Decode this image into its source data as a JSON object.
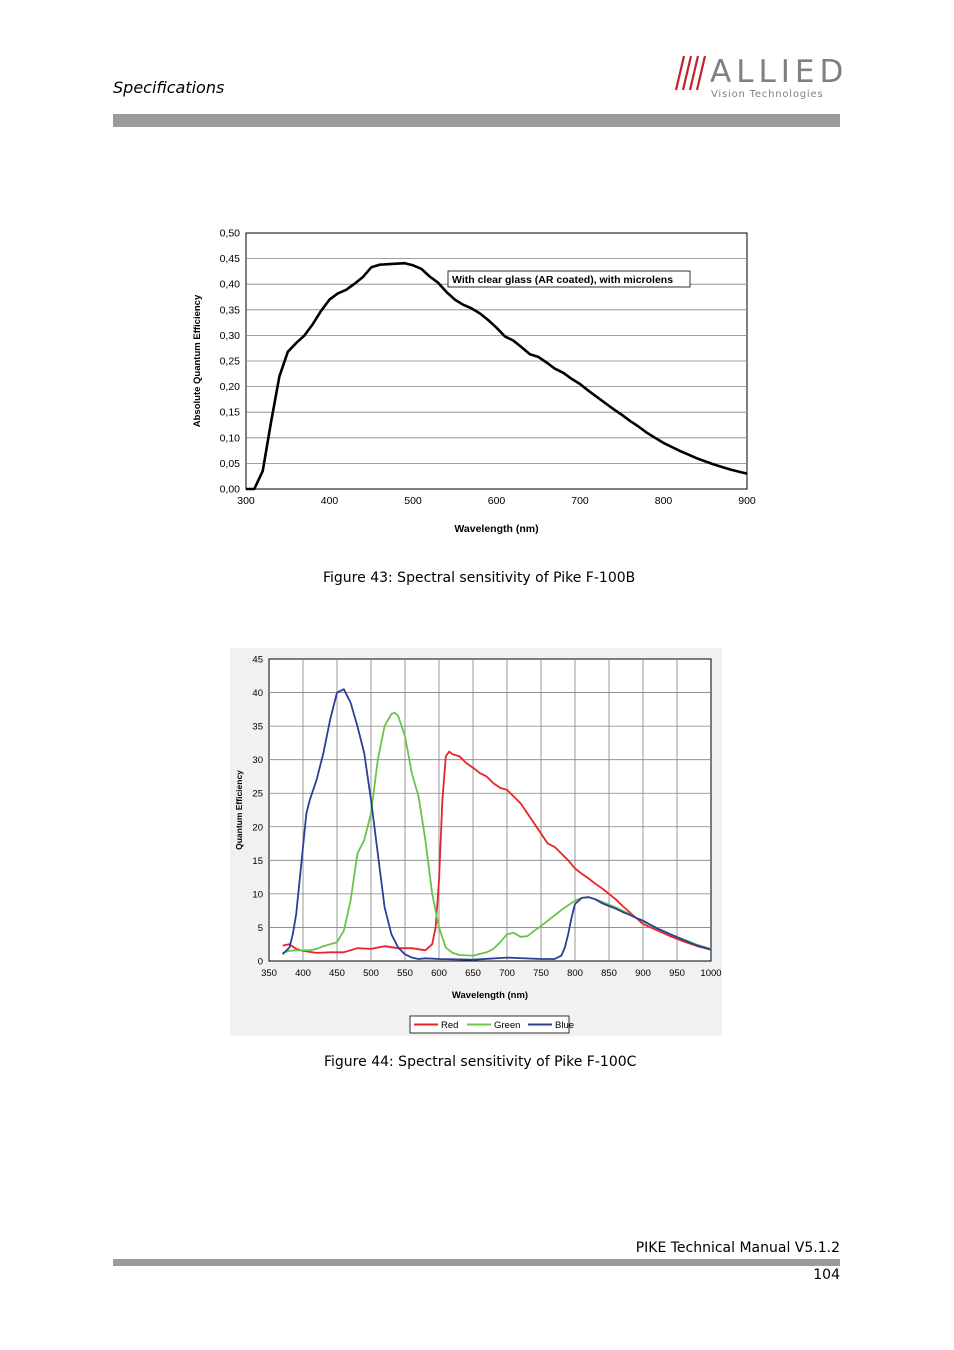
{
  "header": {
    "section_title": "Specifications",
    "logo_word": "ALLIED",
    "logo_subtitle": "Vision Technologies",
    "rule_color": "#9b9b9b"
  },
  "figures": [
    {
      "caption": "Figure 43: Spectral sensitivity of Pike F-100B"
    },
    {
      "caption": "Figure 44: Spectral sensitivity of Pike F-100C"
    }
  ],
  "chart_data": [
    {
      "type": "line",
      "xlabel": "Wavelength (nm)",
      "ylabel": "Absolute Quantum Efficiency",
      "xlim": [
        300,
        900
      ],
      "ylim": [
        0,
        0.5
      ],
      "xticks": [
        "300",
        "400",
        "500",
        "600",
        "700",
        "800",
        "900"
      ],
      "yticks": [
        "0,00",
        "0,05",
        "0,10",
        "0,15",
        "0,20",
        "0,25",
        "0,30",
        "0,35",
        "0,40",
        "0,45",
        "0,50"
      ],
      "grid": true,
      "annotation": "With clear glass (AR coated), with microlens",
      "series": [
        {
          "color": "#000000",
          "x": [
            300,
            310,
            320,
            330,
            340,
            350,
            360,
            370,
            380,
            390,
            400,
            410,
            420,
            430,
            440,
            450,
            460,
            470,
            480,
            490,
            500,
            510,
            520,
            530,
            540,
            550,
            560,
            570,
            580,
            590,
            600,
            610,
            620,
            630,
            640,
            650,
            660,
            670,
            680,
            690,
            700,
            710,
            720,
            730,
            740,
            750,
            760,
            770,
            780,
            790,
            800,
            810,
            820,
            830,
            840,
            850,
            860,
            870,
            880,
            890,
            900
          ],
          "y": [
            0.0,
            0.0,
            0.035,
            0.13,
            0.22,
            0.268,
            0.285,
            0.3,
            0.322,
            0.348,
            0.37,
            0.382,
            0.389,
            0.401,
            0.414,
            0.433,
            0.438,
            0.439,
            0.44,
            0.441,
            0.437,
            0.43,
            0.415,
            0.403,
            0.385,
            0.37,
            0.36,
            0.353,
            0.343,
            0.33,
            0.315,
            0.298,
            0.29,
            0.277,
            0.263,
            0.258,
            0.247,
            0.235,
            0.227,
            0.215,
            0.205,
            0.192,
            0.18,
            0.168,
            0.156,
            0.145,
            0.133,
            0.122,
            0.11,
            0.1,
            0.09,
            0.082,
            0.074,
            0.067,
            0.06,
            0.054,
            0.048,
            0.043,
            0.038,
            0.034,
            0.03
          ]
        }
      ]
    },
    {
      "type": "line",
      "xlabel": "Wavelength (nm)",
      "ylabel": "Quantum Efficiency",
      "xlim": [
        350,
        1000
      ],
      "ylim": [
        0,
        45
      ],
      "xticks": [
        "350",
        "400",
        "450",
        "500",
        "550",
        "600",
        "650",
        "700",
        "750",
        "800",
        "850",
        "900",
        "950",
        "1000"
      ],
      "yticks": [
        "0",
        "5",
        "10",
        "15",
        "20",
        "25",
        "30",
        "35",
        "40",
        "45"
      ],
      "grid": true,
      "legend": "bottom",
      "series": [
        {
          "name": "Red",
          "color": "#e8242b",
          "x": [
            370,
            380,
            390,
            400,
            420,
            440,
            460,
            480,
            500,
            520,
            540,
            560,
            580,
            590,
            595,
            600,
            605,
            610,
            615,
            620,
            630,
            640,
            650,
            660,
            670,
            680,
            690,
            700,
            710,
            720,
            730,
            740,
            750,
            760,
            770,
            780,
            790,
            800,
            810,
            820,
            830,
            840,
            850,
            860,
            870,
            880,
            890,
            900,
            920,
            940,
            960,
            980,
            1000
          ],
          "y": [
            2.3,
            2.5,
            1.8,
            1.5,
            1.2,
            1.3,
            1.3,
            1.9,
            1.8,
            2.2,
            1.9,
            1.9,
            1.6,
            2.5,
            5,
            12,
            24,
            30.5,
            31.2,
            30.8,
            30.5,
            29.5,
            28.8,
            28,
            27.5,
            26.5,
            25.8,
            25.5,
            24.5,
            23.5,
            22,
            20.5,
            19,
            17.5,
            17,
            16,
            15,
            13.8,
            13,
            12.3,
            11.5,
            10.8,
            10,
            9.2,
            8.2,
            7.3,
            6.4,
            5.5,
            4.6,
            3.7,
            2.9,
            2.2,
            1.7
          ]
        },
        {
          "name": "Green",
          "color": "#6cc24a",
          "x": [
            370,
            380,
            390,
            400,
            410,
            420,
            430,
            440,
            450,
            460,
            470,
            480,
            490,
            500,
            510,
            520,
            530,
            535,
            540,
            550,
            560,
            570,
            580,
            590,
            600,
            610,
            620,
            630,
            650,
            670,
            680,
            690,
            700,
            710,
            720,
            730,
            740,
            750,
            760,
            770,
            780,
            790,
            800,
            810,
            820,
            830,
            840,
            850,
            860,
            870,
            880,
            890,
            900,
            920,
            940,
            960,
            980,
            1000
          ],
          "y": [
            1.2,
            1.5,
            1.6,
            1.6,
            1.6,
            1.8,
            2.2,
            2.5,
            2.8,
            4.5,
            9,
            16,
            18,
            22,
            30,
            35,
            36.8,
            37,
            36.5,
            33.5,
            28,
            24.5,
            18,
            10,
            5,
            2,
            1.2,
            0.9,
            0.8,
            1.3,
            1.8,
            2.8,
            4,
            4.2,
            3.6,
            3.7,
            4.5,
            5.2,
            6,
            6.8,
            7.6,
            8.3,
            9,
            9.4,
            9.5,
            9.2,
            8.8,
            8.4,
            8,
            7.5,
            7,
            6.4,
            5.9,
            4.9,
            4,
            3.2,
            2.4,
            1.8
          ]
        },
        {
          "name": "Blue",
          "color": "#2b3f97",
          "x": [
            370,
            375,
            380,
            385,
            390,
            395,
            400,
            405,
            410,
            420,
            430,
            440,
            450,
            460,
            470,
            480,
            490,
            500,
            510,
            520,
            530,
            540,
            550,
            560,
            570,
            580,
            600,
            650,
            700,
            750,
            770,
            780,
            785,
            790,
            795,
            800,
            810,
            820,
            830,
            840,
            850,
            860,
            870,
            880,
            890,
            900,
            920,
            940,
            960,
            980,
            1000
          ],
          "y": [
            1,
            1.5,
            2,
            4,
            7,
            12,
            17,
            22,
            24,
            27,
            31,
            36,
            40,
            40.5,
            38.5,
            35,
            31,
            24,
            16,
            8,
            4,
            2,
            1,
            0.5,
            0.3,
            0.4,
            0.3,
            0.2,
            0.5,
            0.3,
            0.3,
            0.8,
            2,
            4,
            6.5,
            8.5,
            9.4,
            9.5,
            9.2,
            8.6,
            8.2,
            7.8,
            7.3,
            6.9,
            6.4,
            6,
            4.9,
            4,
            3.1,
            2.3,
            1.7
          ]
        }
      ]
    }
  ],
  "footer": {
    "manual_title": "PIKE Technical Manual V5.1.2",
    "page_number": "104"
  }
}
